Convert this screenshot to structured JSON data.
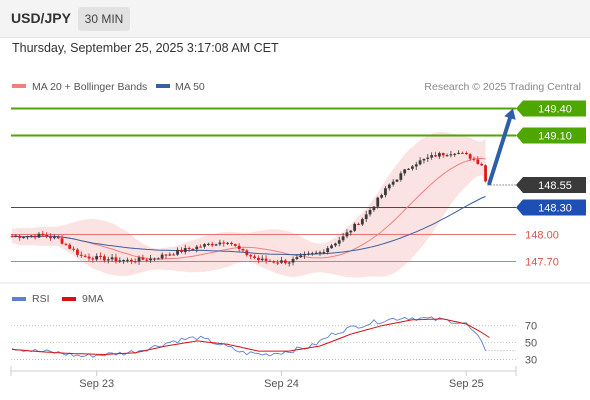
{
  "header": {
    "pair": "USD/JPY",
    "timeframe": "30 MIN",
    "datetime": "Thursday, September 25, 2025 3:17:08 AM CET"
  },
  "colors": {
    "up_candle": "#3a3a3a",
    "down_candle": "#e01818",
    "bollinger_band": "#fbdede",
    "ma20": "#f08080",
    "ma50": "#3a5fa0",
    "resistance": "#4ea600",
    "support": "#e57373",
    "pivot": "#1e4fb4",
    "current_price": "#3a3a3a",
    "arrow": "#2c5fa8",
    "rsi": "#5b7fd4",
    "rsi_ma": "#d81010"
  },
  "chart_data": [
    {
      "type": "candlestick",
      "title": "",
      "legend": [
        {
          "name": "MA 20 + Bollinger Bands",
          "color": "#f08080"
        },
        {
          "name": "MA 50",
          "color": "#3a5fa0"
        }
      ],
      "attribution": "Research © 2025 Trading Central",
      "x_ticks": [
        {
          "label": "Sep 23",
          "index": 22
        },
        {
          "label": "Sep 24",
          "index": 70
        },
        {
          "label": "Sep 25",
          "index": 118
        }
      ],
      "y_range": [
        147.55,
        149.55
      ],
      "levels": [
        {
          "label": "149.40",
          "value": 149.4,
          "kind": "resistance"
        },
        {
          "label": "149.10",
          "value": 149.1,
          "kind": "resistance"
        },
        {
          "label": "148.55",
          "value": 148.55,
          "kind": "current"
        },
        {
          "label": "148.30",
          "value": 148.3,
          "kind": "pivot"
        },
        {
          "label": "148.00",
          "value": 148.0,
          "kind": "support"
        },
        {
          "label": "147.70",
          "value": 147.7,
          "kind": "support"
        }
      ],
      "arrow": {
        "from_index": 124,
        "from_value": 148.57,
        "to_value": 149.4
      },
      "ohlc_series": {
        "start_price": 147.98,
        "waypoints": [
          [
            0,
            147.98
          ],
          [
            8,
            147.99
          ],
          [
            12,
            147.95
          ],
          [
            18,
            147.76
          ],
          [
            24,
            147.73
          ],
          [
            30,
            147.71
          ],
          [
            36,
            147.73
          ],
          [
            45,
            147.83
          ],
          [
            50,
            147.88
          ],
          [
            56,
            147.93
          ],
          [
            60,
            147.8
          ],
          [
            64,
            147.72
          ],
          [
            68,
            147.7
          ],
          [
            72,
            147.7
          ],
          [
            76,
            147.76
          ],
          [
            80,
            147.8
          ],
          [
            86,
            147.97
          ],
          [
            92,
            148.22
          ],
          [
            98,
            148.55
          ],
          [
            104,
            148.78
          ],
          [
            110,
            148.88
          ],
          [
            115,
            148.92
          ],
          [
            119,
            148.86
          ],
          [
            122,
            148.78
          ],
          [
            123,
            148.59
          ]
        ]
      }
    },
    {
      "type": "line",
      "title": "",
      "legend": [
        {
          "name": "RSI",
          "color": "#5b7fd4"
        },
        {
          "name": "9MA",
          "color": "#d81010"
        }
      ],
      "y_range": [
        20,
        85
      ],
      "y_ticks": [
        70,
        50,
        30
      ],
      "reference_lines": [
        70,
        50,
        30
      ],
      "rsi_waypoints": [
        [
          0,
          44
        ],
        [
          6,
          40
        ],
        [
          12,
          38
        ],
        [
          18,
          34
        ],
        [
          24,
          36
        ],
        [
          30,
          38
        ],
        [
          36,
          44
        ],
        [
          42,
          52
        ],
        [
          48,
          56
        ],
        [
          54,
          48
        ],
        [
          60,
          38
        ],
        [
          66,
          36
        ],
        [
          72,
          40
        ],
        [
          78,
          46
        ],
        [
          84,
          62
        ],
        [
          90,
          70
        ],
        [
          96,
          76
        ],
        [
          102,
          80
        ],
        [
          108,
          78
        ],
        [
          114,
          76
        ],
        [
          118,
          72
        ],
        [
          121,
          56
        ],
        [
          123,
          42
        ]
      ],
      "rsi_ma_waypoints": [
        [
          0,
          42
        ],
        [
          8,
          39
        ],
        [
          16,
          37
        ],
        [
          24,
          36
        ],
        [
          32,
          38
        ],
        [
          40,
          46
        ],
        [
          48,
          52
        ],
        [
          56,
          48
        ],
        [
          64,
          40
        ],
        [
          72,
          40
        ],
        [
          80,
          46
        ],
        [
          88,
          60
        ],
        [
          96,
          70
        ],
        [
          104,
          77
        ],
        [
          112,
          78
        ],
        [
          118,
          72
        ],
        [
          122,
          62
        ],
        [
          124,
          56
        ]
      ]
    }
  ]
}
